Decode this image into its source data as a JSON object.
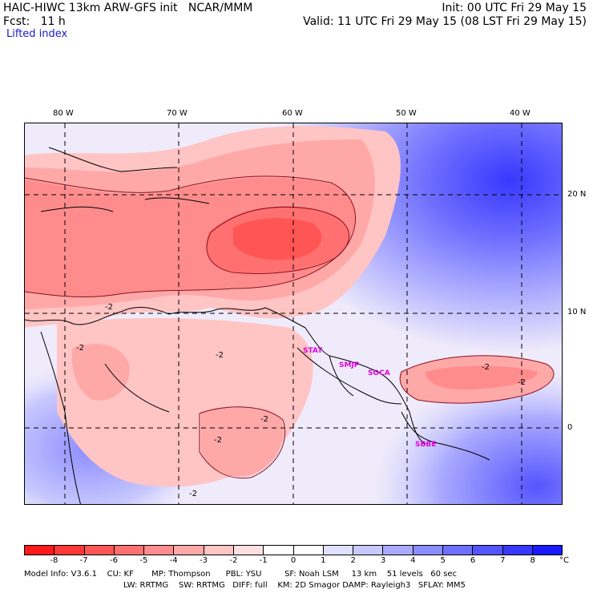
{
  "header": {
    "title_left": "HAIC-HIWC 13km ARW-GFS init   NCAR/MMM",
    "init": "Init: 00 UTC Fri 29 May 15",
    "fcst": "Fcst:   11 h",
    "valid": "Valid: 11 UTC Fri 29 May 15 (08 LST Fri 29 May 15)",
    "field": "Lifted index"
  },
  "map": {
    "lon_labels": [
      "80 W",
      "70 W",
      "60 W",
      "50 W",
      "40 W"
    ],
    "lat_labels": [
      "20 N",
      "10 N",
      "0"
    ],
    "contour_labels": [
      "-2",
      "-2",
      "-2",
      "-2",
      "-2",
      "-2",
      "-2",
      "-2"
    ],
    "stations": [
      "STAT",
      "SMJP",
      "SOCA",
      "SBBE"
    ]
  },
  "colorbar": {
    "colors": [
      "#ff1a1a",
      "#ff3838",
      "#ff5555",
      "#ff7070",
      "#ff8c8c",
      "#ffa8a8",
      "#ffc4c4",
      "#ffe0e0",
      "#ffffff",
      "#ffffff",
      "#e0e0ff",
      "#c8c8ff",
      "#aaaaff",
      "#8c8cff",
      "#7070ff",
      "#5555ff",
      "#3838ff",
      "#1a1aff"
    ],
    "ticks": [
      "-8",
      "-7",
      "-6",
      "-5",
      "-4",
      "-3",
      "-2",
      "-1",
      "0",
      "1",
      "2",
      "3",
      "4",
      "5",
      "6",
      "7",
      "8"
    ],
    "unit": "°C"
  },
  "model_info": {
    "line1": "Model Info: V3.6.1    CU: KF       MP: Thompson      PBL: YSU         SF: Noah LSM     13 km    51 levels   60 sec",
    "line2": "LW: RRTMG    SW: RRTMG   DIFF: full    KM: 2D Smagor DAMP: Rayleigh3   SFLAY: MM5"
  }
}
